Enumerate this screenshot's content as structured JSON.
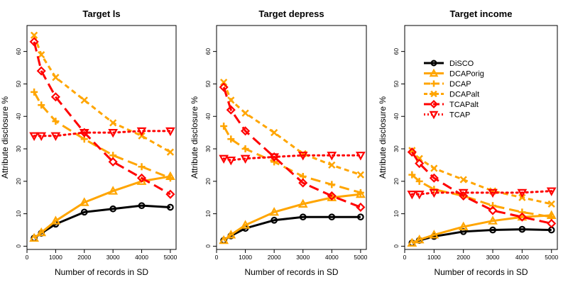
{
  "chart_data": {
    "type": "line",
    "xlabel": "Number of records in SD",
    "ylabel": "Attribute disclosure %",
    "xlim": [
      0,
      5200
    ],
    "ylim": [
      -1,
      68
    ],
    "x_ticks": [
      0,
      1000,
      2000,
      3000,
      4000,
      5000
    ],
    "y_ticks": [
      0,
      10,
      20,
      30,
      40,
      50,
      60
    ],
    "x": [
      250,
      500,
      1000,
      2000,
      3000,
      4000,
      5000
    ],
    "legend": {
      "placement": "top-right of third panel"
    },
    "series_styles": [
      {
        "name": "DiSCO",
        "color": "#000000",
        "dash": "solid",
        "marker": "circle",
        "width": 3
      },
      {
        "name": "DCAPorig",
        "color": "#FFA500",
        "dash": "solid",
        "marker": "triangle",
        "width": 3
      },
      {
        "name": "DCAP",
        "color": "#FFA500",
        "dash": "longdash",
        "marker": "plus",
        "width": 3
      },
      {
        "name": "DCAPalt",
        "color": "#FFA500",
        "dash": "dashed",
        "marker": "x",
        "width": 3
      },
      {
        "name": "TCAPalt",
        "color": "#FF0000",
        "dash": "longdash",
        "marker": "diamond",
        "width": 3
      },
      {
        "name": "TCAP",
        "color": "#FF0000",
        "dash": "dotted",
        "marker": "triangle-down",
        "width": 3
      }
    ],
    "panels": [
      {
        "title": "Target ls",
        "series": [
          {
            "name": "DiSCO",
            "values": [
              2.5,
              4,
              6.8,
              10.5,
              11.5,
              12.5,
              12
            ]
          },
          {
            "name": "DCAPorig",
            "values": [
              2.5,
              4.2,
              7.8,
              13.5,
              17,
              20,
              21.5
            ]
          },
          {
            "name": "DCAP",
            "values": [
              47.5,
              43.5,
              38.5,
              33,
              28,
              24.5,
              21
            ]
          },
          {
            "name": "DCAPalt",
            "values": [
              65,
              59,
              52,
              45,
              38,
              34,
              29
            ]
          },
          {
            "name": "TCAPalt",
            "values": [
              63,
              54,
              46,
              35,
              26,
              21,
              16
            ]
          },
          {
            "name": "TCAP",
            "values": [
              34,
              34,
              34,
              35,
              35,
              35.5,
              35.5
            ]
          }
        ]
      },
      {
        "title": "Target depress",
        "series": [
          {
            "name": "DiSCO",
            "values": [
              1.8,
              3.2,
              5.5,
              8,
              9,
              9,
              9
            ]
          },
          {
            "name": "DCAPorig",
            "values": [
              1.8,
              3.5,
              6.5,
              10.5,
              13,
              15,
              16
            ]
          },
          {
            "name": "DCAP",
            "values": [
              37,
              33,
              30,
              26,
              21.5,
              19,
              16.5
            ]
          },
          {
            "name": "DCAPalt",
            "values": [
              50.5,
              45,
              41,
              35,
              28.5,
              25,
              22
            ]
          },
          {
            "name": "TCAPalt",
            "values": [
              49,
              42,
              35.5,
              27.5,
              19.5,
              15.5,
              12
            ]
          },
          {
            "name": "TCAP",
            "values": [
              27,
              26.5,
              27,
              27.5,
              28,
              28,
              28
            ]
          }
        ]
      },
      {
        "title": "Target income",
        "series": [
          {
            "name": "DiSCO",
            "values": [
              1,
              1.8,
              3,
              4.5,
              5,
              5.2,
              5
            ]
          },
          {
            "name": "DCAPorig",
            "values": [
              1,
              2,
              3.5,
              6,
              7.8,
              9,
              9.5
            ]
          },
          {
            "name": "DCAP",
            "values": [
              22,
              20,
              17.5,
              15.5,
              12.5,
              10.5,
              9
            ]
          },
          {
            "name": "DCAPalt",
            "values": [
              29.5,
              27,
              24,
              20.5,
              17,
              15,
              13
            ]
          },
          {
            "name": "TCAPalt",
            "values": [
              29,
              25.5,
              21,
              15.5,
              11,
              9,
              7
            ]
          },
          {
            "name": "TCAP",
            "values": [
              16,
              16,
              16.5,
              16.5,
              16.5,
              16.5,
              17
            ]
          }
        ]
      }
    ]
  }
}
